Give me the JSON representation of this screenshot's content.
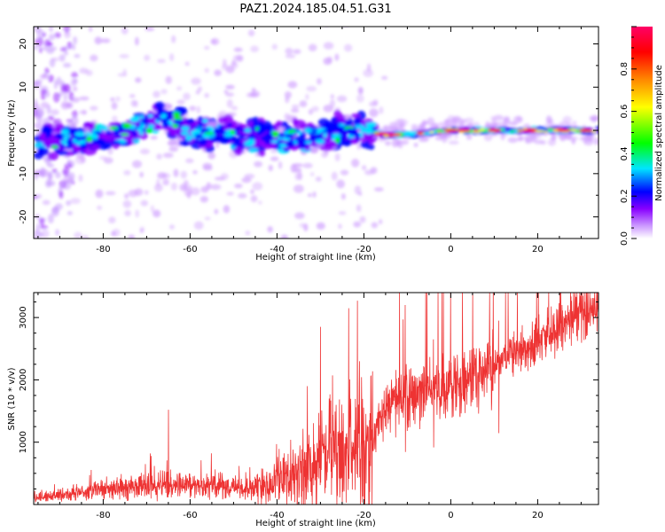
{
  "title": "PAZ1.2024.185.04.51.G31",
  "chart_data": [
    {
      "type": "heatmap",
      "xlabel": "Height of straight line (km)",
      "ylabel": "Frequency (Hz)",
      "xlim": [
        -96,
        34
      ],
      "ylim": [
        -25,
        24
      ],
      "xticks": [
        -80,
        -60,
        -40,
        -20,
        0,
        20
      ],
      "yticks": [
        -20,
        -10,
        0,
        10,
        20
      ],
      "colorbar": {
        "label": "Normalized spectral amplitude",
        "range": [
          0,
          1
        ],
        "ticks": [
          0.0,
          0.2,
          0.4,
          0.6,
          0.8
        ],
        "colors": [
          "#ffffff",
          "#cc99ff",
          "#8800ff",
          "#0000ff",
          "#00e5ff",
          "#00ff00",
          "#ffff00",
          "#ff8800",
          "#ff0000",
          "#ff0066"
        ]
      },
      "ridge": {
        "x": [
          -92,
          -85,
          -80,
          -75,
          -70,
          -65,
          -60,
          -55,
          -50,
          -45,
          -40,
          -35,
          -30,
          -25,
          -20,
          -15,
          -10,
          -5,
          0,
          10,
          20,
          30,
          34
        ],
        "y": [
          -2,
          -2,
          -1,
          -1,
          2,
          3,
          0,
          0,
          -1,
          -1,
          -2,
          -2,
          -1,
          0,
          0,
          -1,
          -1,
          -0.5,
          0,
          0,
          0,
          0,
          0
        ]
      }
    },
    {
      "type": "line",
      "xlabel": "Height of straight line (km)",
      "ylabel": "SNR (10 * v/v)",
      "xlim": [
        -96,
        34
      ],
      "ylim": [
        0,
        3400
      ],
      "xticks": [
        -80,
        -60,
        -40,
        -20,
        0,
        20
      ],
      "yticks": [
        1000,
        2000,
        3000
      ],
      "color": "#ee3333",
      "envelope": {
        "x": [
          -96,
          -85,
          -75,
          -65,
          -55,
          -48,
          -42,
          -38,
          -33,
          -30,
          -25,
          -22,
          -20,
          -18,
          -17,
          -15,
          -12,
          -10,
          -8,
          -5,
          0,
          5,
          10,
          15,
          20,
          25,
          30,
          34
        ],
        "y": [
          100,
          200,
          280,
          320,
          300,
          260,
          300,
          450,
          600,
          700,
          800,
          850,
          900,
          1000,
          1300,
          1550,
          1650,
          1700,
          1750,
          1800,
          1950,
          2050,
          2250,
          2450,
          2650,
          2850,
          3050,
          3150
        ]
      },
      "spikes": [
        {
          "x": -65,
          "y": 1520
        },
        {
          "x": -33,
          "y": 1900
        },
        {
          "x": -30,
          "y": 2850
        },
        {
          "x": -23.5,
          "y": 3150
        },
        {
          "x": -21.5,
          "y": 3270
        },
        {
          "x": -21,
          "y": 2300
        },
        {
          "x": -10.5,
          "y": 3200
        },
        {
          "x": -4,
          "y": 2650
        },
        {
          "x": 11,
          "y": 2950
        }
      ]
    }
  ]
}
